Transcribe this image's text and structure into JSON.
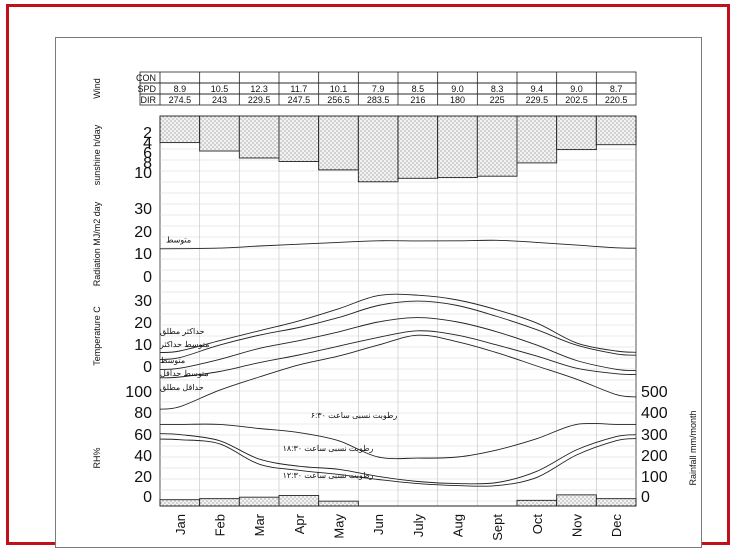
{
  "months": [
    "Jan",
    "Feb",
    "Mar",
    "Apr",
    "May",
    "Jun",
    "July",
    "Aug",
    "Sept",
    "Oct",
    "Nov",
    "Dec"
  ],
  "chart_data": [
    {
      "type": "table",
      "panel_label": "Wind",
      "rows": [
        {
          "label": "CON",
          "values": [
            "",
            "",
            "",
            "",
            "",
            "",
            "",
            "",
            "",
            "",
            "",
            ""
          ]
        },
        {
          "label": "SPD",
          "values": [
            "8.9",
            "10.5",
            "12.3",
            "11.7",
            "10.1",
            "7.9",
            "8.5",
            "9.0",
            "8.3",
            "9.4",
            "9.0",
            "8.7"
          ]
        },
        {
          "label": "DIR",
          "values": [
            "274.5",
            "243",
            "229.5",
            "247.5",
            "256.5",
            "283.5",
            "216",
            "180",
            "225",
            "229.5",
            "202.5",
            "220.5"
          ]
        }
      ]
    },
    {
      "type": "bar",
      "ylabel": "sunshine h/day",
      "y_ticks": [
        "2",
        "4",
        "6",
        "8",
        "10"
      ],
      "ylim": [
        0,
        10
      ],
      "inverted": true,
      "categories": [
        "Jan",
        "Feb",
        "Mar",
        "Apr",
        "May",
        "Jun",
        "July",
        "Aug",
        "Sept",
        "Oct",
        "Nov",
        "Dec"
      ],
      "values": [
        3.8,
        5.0,
        6.0,
        6.5,
        7.7,
        9.4,
        8.9,
        8.8,
        8.6,
        6.7,
        4.8,
        4.1
      ]
    },
    {
      "type": "line",
      "ylabel": "Radiation MJ/m2 day",
      "y_ticks": [
        "30",
        "20",
        "10",
        "0"
      ],
      "ylim": [
        0,
        30
      ],
      "series": [
        {
          "name": "متوسط",
          "values": [
            18.2,
            18.6,
            20.0,
            21.2,
            22.4,
            23.5,
            23.4,
            23.5,
            23.8,
            22.4,
            20.6,
            18.8
          ]
        }
      ]
    },
    {
      "type": "line",
      "ylabel": "Temperature C",
      "y_ticks": [
        "30",
        "20",
        "10",
        "0"
      ],
      "ylim": [
        -10,
        30
      ],
      "series": [
        {
          "name": "حداكثر مطلق",
          "values": [
            6.8,
            11.5,
            16.0,
            20.5,
            26.0,
            32.0,
            32.2,
            30.0,
            25.5,
            19.5,
            10.5,
            6.8
          ]
        },
        {
          "name": "متوسط حداكثر",
          "values": [
            3.8,
            9.5,
            14.0,
            17.5,
            22.0,
            27.5,
            29.5,
            27.5,
            22.5,
            16.5,
            9.5,
            5.5
          ]
        },
        {
          "name": "متوسط",
          "values": [
            -1.0,
            3.0,
            8.0,
            11.5,
            15.5,
            20.0,
            22.0,
            20.0,
            15.5,
            9.5,
            2.5,
            -1.5
          ]
        },
        {
          "name": "متوسط حداقل",
          "values": [
            -5.0,
            -2.5,
            1.5,
            5.0,
            9.0,
            13.0,
            16.0,
            14.0,
            9.5,
            4.5,
            -1.0,
            -3.5
          ]
        },
        {
          "name": "حداقل مطلق",
          "values": [
            -18.5,
            -11.0,
            -5.0,
            0.5,
            4.5,
            9.5,
            14.0,
            11.0,
            6.0,
            0.0,
            -6.0,
            -13.0
          ]
        }
      ]
    },
    {
      "type": "line",
      "ylabel": "RH%",
      "y_ticks": [
        "100",
        "80",
        "60",
        "40",
        "20",
        "0"
      ],
      "ylim": [
        0,
        100
      ],
      "series": [
        {
          "name": "رطوبت نسبى ساعت ۶:۳۰",
          "values": [
            80,
            80,
            76,
            72,
            64,
            48,
            47,
            48,
            55,
            66,
            80,
            80
          ]
        },
        {
          "name": "رطوبت نسبى ساعت ۱۸:۳۰",
          "values": [
            70,
            64,
            46,
            39,
            36,
            29,
            24,
            22,
            23,
            34,
            55,
            68
          ]
        },
        {
          "name": "رطوبت نسبى ساعت ۱۲:۳۰",
          "values": [
            65,
            61,
            41,
            35,
            31,
            26,
            22,
            20,
            20,
            28,
            50,
            64
          ]
        }
      ]
    },
    {
      "type": "bar",
      "ylabel": "Rainfall mm/month",
      "y_ticks": [
        "500",
        "400",
        "300",
        "200",
        "100",
        "0"
      ],
      "ylim": [
        0,
        500
      ],
      "categories": [
        "Jan",
        "Feb",
        "Mar",
        "Apr",
        "May",
        "Jun",
        "July",
        "Aug",
        "Sept",
        "Oct",
        "Nov",
        "Dec"
      ],
      "values": [
        30,
        35,
        42,
        50,
        23,
        0,
        0,
        0,
        0,
        27,
        53,
        35
      ]
    }
  ]
}
